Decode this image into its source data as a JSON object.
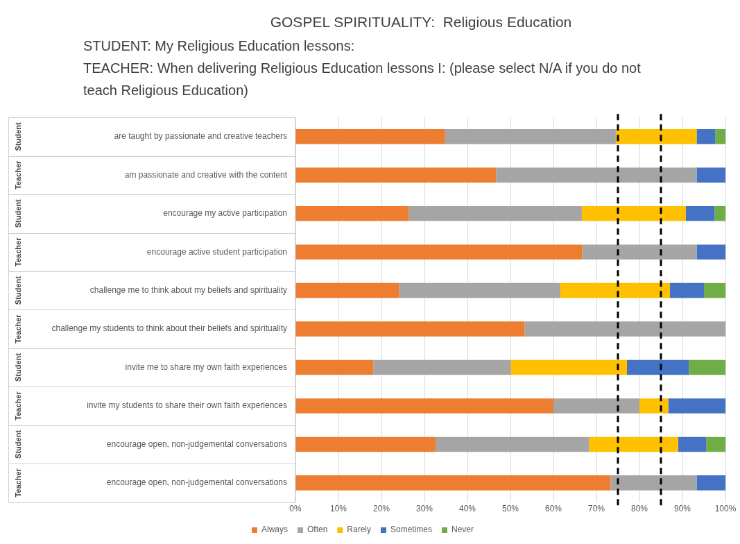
{
  "chart_data": {
    "type": "bar",
    "orientation": "horizontal",
    "stacked": true,
    "title": "GOSPEL SPIRITUALITY:  Religious Education",
    "subtitle": "STUDENT: My Religious Education lessons:\nTEACHER: When delivering Religious Education lessons I: (please select N/A if you do not teach Religious Education)",
    "categories": [
      "are taught by passionate and creative teachers",
      "am passionate and creative with the content",
      "encourage my active participation",
      "encourage active student participation",
      "challenge me to think about my beliefs and spirituality",
      "challenge my students to think about their beliefs and spirituality",
      "invite me to share my own faith experiences",
      "invite my students to share their own faith experiences",
      "encourage open, non-judgemental conversations",
      "encourage open, non-judgemental conversations"
    ],
    "annotations": [
      "Student",
      "Teacher",
      "Student",
      "Teacher",
      "Student",
      "Teacher",
      "Student",
      "Teacher",
      "Student",
      "Teacher"
    ],
    "series": [
      {
        "name": "Always",
        "color": "#ed7d31",
        "values": [
          34.8,
          46.7,
          26.4,
          66.7,
          24.1,
          53.3,
          18.1,
          60,
          32.6,
          73.3
        ]
      },
      {
        "name": "Often",
        "color": "#a5a5a5",
        "values": [
          39.7,
          46.6,
          40.2,
          26.6,
          37.5,
          46.7,
          32.0,
          20,
          35.7,
          20.0
        ]
      },
      {
        "name": "Rarely",
        "color": "#ffc000",
        "values": [
          18.8,
          0,
          24.2,
          0,
          25.5,
          0,
          27.0,
          6.7,
          20.7,
          0
        ]
      },
      {
        "name": "Sometimes",
        "color": "#4472c4",
        "values": [
          4.3,
          6.7,
          6.7,
          6.7,
          7.9,
          0,
          14.4,
          13.3,
          6.5,
          6.7
        ]
      },
      {
        "name": "Never",
        "color": "#70ad47",
        "values": [
          2.4,
          0,
          2.5,
          0,
          5.0,
          0,
          8.5,
          0,
          4.5,
          0
        ]
      }
    ],
    "xlim": [
      0,
      100
    ],
    "xticks": [
      {
        "value": 0,
        "label": "0%"
      },
      {
        "value": 10,
        "label": "10%"
      },
      {
        "value": 20,
        "label": "20%"
      },
      {
        "value": 30,
        "label": "30%"
      },
      {
        "value": 40,
        "label": "40%"
      },
      {
        "value": 50,
        "label": "50%"
      },
      {
        "value": 60,
        "label": "60%"
      },
      {
        "value": 70,
        "label": "70%"
      },
      {
        "value": 80,
        "label": "80%"
      },
      {
        "value": 90,
        "label": "90%"
      },
      {
        "value": 100,
        "label": "100%"
      }
    ],
    "grid": "x",
    "legend": "bottom",
    "ref_lines": [
      {
        "axis": "x",
        "value": 75,
        "color": "#000000",
        "line_style": "dashed"
      },
      {
        "axis": "x",
        "value": 85,
        "color": "#000000",
        "line_style": "dashed"
      }
    ]
  }
}
